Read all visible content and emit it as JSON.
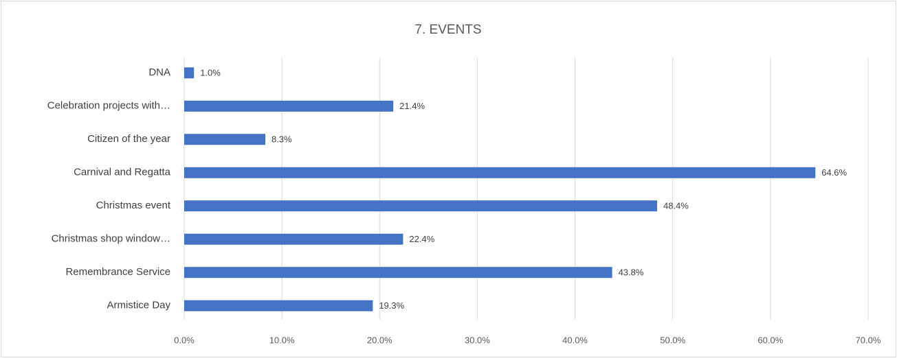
{
  "chart_data": {
    "type": "bar",
    "orientation": "horizontal",
    "title": "7. EVENTS",
    "categories": [
      "DNA",
      "Celebration projects with…",
      "Citizen of the year",
      "Carnival and Regatta",
      "Christmas event",
      "Christmas shop window…",
      "Remembrance Service",
      "Armistice Day"
    ],
    "values": [
      1.0,
      21.4,
      8.3,
      64.6,
      48.4,
      22.4,
      43.8,
      19.3
    ],
    "value_labels": [
      "1.0%",
      "21.4%",
      "8.3%",
      "64.6%",
      "48.4%",
      "22.4%",
      "43.8%",
      "19.3%"
    ],
    "color": "#4472c4",
    "xlim": [
      0,
      70
    ],
    "xticks": [
      {
        "value": 0,
        "label": "0.0%"
      },
      {
        "value": 10,
        "label": "10.0%"
      },
      {
        "value": 20,
        "label": "20.0%"
      },
      {
        "value": 30,
        "label": "30.0%"
      },
      {
        "value": 40,
        "label": "40.0%"
      },
      {
        "value": 50,
        "label": "50.0%"
      },
      {
        "value": 60,
        "label": "60.0%"
      },
      {
        "value": 70,
        "label": "70.0%"
      }
    ],
    "grid": true
  }
}
